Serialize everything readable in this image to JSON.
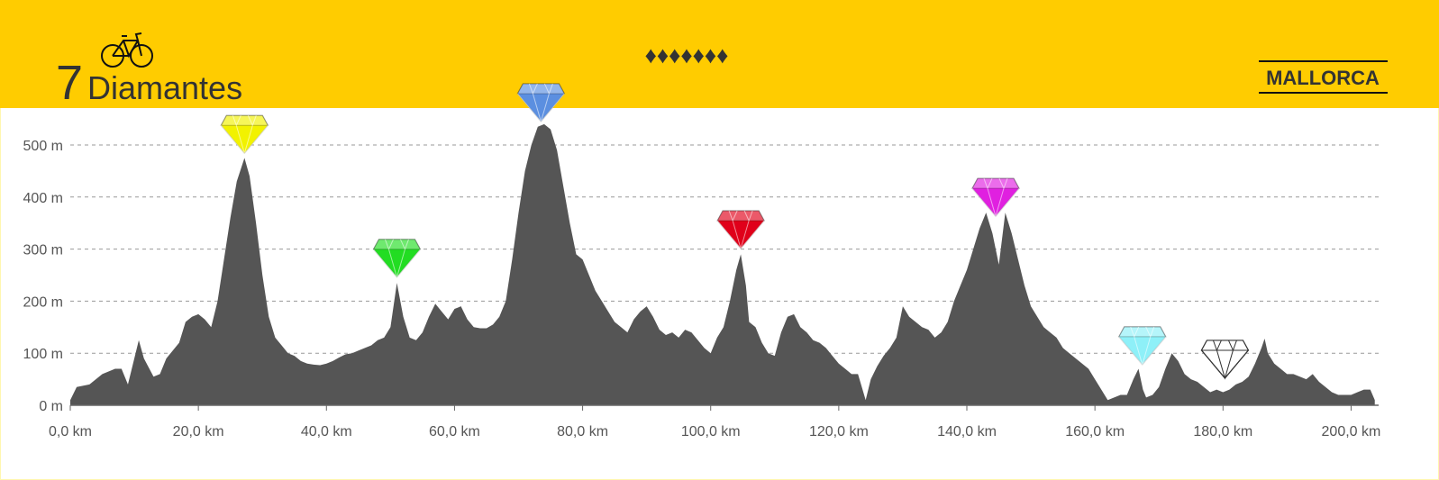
{
  "header": {
    "number": "7",
    "title": "Diamantes",
    "ornament": "♦♦♦♦♦♦♦",
    "region": "MALLORCA"
  },
  "chart_data": {
    "type": "area",
    "color": "#555555",
    "x": [
      0,
      1,
      3,
      5,
      7,
      8,
      9,
      10,
      10.7,
      11.5,
      13,
      14,
      15,
      17,
      18,
      19,
      20,
      21,
      22,
      23,
      24,
      25,
      26,
      27.2,
      28,
      29,
      30,
      31,
      32,
      33,
      34,
      35,
      36,
      37,
      38,
      39,
      40,
      41,
      42,
      43,
      44,
      45,
      46,
      47,
      48,
      49,
      50,
      51,
      52,
      53,
      54,
      55,
      56,
      57,
      58,
      59,
      60,
      61,
      62,
      63,
      64,
      65,
      66,
      67,
      68,
      69,
      70,
      71,
      72,
      73,
      74,
      75,
      76,
      77,
      78,
      79,
      80,
      81,
      82,
      83,
      84,
      85,
      86,
      87,
      88,
      89,
      90,
      91,
      92,
      93,
      94,
      95,
      96,
      97,
      98,
      99,
      100,
      101,
      102,
      103,
      104,
      104.7,
      105.5,
      106,
      107,
      108,
      109,
      110,
      111,
      112,
      113,
      114,
      115,
      116,
      117,
      118,
      119,
      120,
      121,
      122,
      123,
      124.2,
      125,
      126,
      127,
      128,
      129,
      130,
      131,
      132,
      133,
      134,
      135,
      136,
      137,
      138,
      139,
      140,
      141,
      142,
      143,
      144,
      145,
      146,
      147,
      148,
      149,
      150,
      151,
      152,
      153,
      154,
      155,
      156,
      157,
      158,
      159,
      160,
      161,
      162,
      163,
      164,
      165,
      166,
      166.8,
      167.5,
      168,
      169,
      170,
      171,
      172,
      173,
      174,
      175,
      176,
      177,
      178,
      179,
      180,
      181,
      182,
      183,
      184,
      185,
      186,
      186.5,
      187,
      188,
      189,
      190,
      191,
      192,
      193,
      194,
      195,
      196,
      197,
      198,
      199,
      200,
      201,
      202,
      203,
      203.7
    ],
    "values": [
      10,
      35,
      40,
      60,
      70,
      70,
      40,
      90,
      125,
      90,
      55,
      60,
      90,
      120,
      160,
      170,
      175,
      165,
      150,
      200,
      280,
      360,
      430,
      475,
      440,
      350,
      250,
      170,
      130,
      115,
      100,
      95,
      85,
      80,
      78,
      77,
      80,
      85,
      92,
      98,
      100,
      105,
      110,
      115,
      125,
      130,
      150,
      235,
      170,
      130,
      125,
      140,
      170,
      195,
      180,
      165,
      185,
      190,
      165,
      150,
      148,
      148,
      155,
      170,
      200,
      280,
      370,
      450,
      500,
      535,
      540,
      530,
      490,
      420,
      350,
      290,
      280,
      250,
      220,
      200,
      180,
      160,
      150,
      140,
      165,
      180,
      190,
      170,
      145,
      135,
      140,
      130,
      145,
      140,
      125,
      110,
      100,
      130,
      150,
      200,
      260,
      290,
      230,
      160,
      150,
      120,
      100,
      95,
      140,
      170,
      175,
      150,
      140,
      125,
      120,
      110,
      95,
      80,
      70,
      60,
      60,
      10,
      50,
      75,
      95,
      110,
      130,
      190,
      170,
      160,
      150,
      145,
      130,
      140,
      160,
      200,
      230,
      260,
      300,
      340,
      370,
      330,
      270,
      370,
      330,
      280,
      230,
      190,
      170,
      150,
      140,
      130,
      110,
      100,
      90,
      80,
      70,
      50,
      30,
      10,
      15,
      20,
      20,
      50,
      70,
      30,
      15,
      20,
      35,
      70,
      100,
      85,
      60,
      50,
      45,
      35,
      25,
      30,
      25,
      30,
      40,
      45,
      55,
      80,
      110,
      128,
      100,
      80,
      70,
      60,
      60,
      55,
      50,
      60,
      45,
      35,
      25,
      20,
      20,
      20,
      25,
      30,
      30,
      10
    ],
    "markers": [
      {
        "x": 27.2,
        "y": 484,
        "color": "#f2f200"
      },
      {
        "x": 51,
        "y": 246,
        "color": "#22dd22"
      },
      {
        "x": 73.5,
        "y": 545,
        "color": "#5b8fe0"
      },
      {
        "x": 104.7,
        "y": 301,
        "color": "#e0001a"
      },
      {
        "x": 144.5,
        "y": 363,
        "color": "#e020e0"
      },
      {
        "x": 167.4,
        "y": 78,
        "color": "#8ef0f8"
      },
      {
        "x": 180.3,
        "y": 52,
        "color": "#ffffff"
      }
    ],
    "xlim": [
      0,
      204.3
    ],
    "ylim": [
      0,
      570
    ],
    "xticks": [
      {
        "value": 0,
        "label": "0,0 km"
      },
      {
        "value": 20,
        "label": "20,0 km"
      },
      {
        "value": 40,
        "label": "40,0 km"
      },
      {
        "value": 60,
        "label": "60,0 km"
      },
      {
        "value": 80,
        "label": "80,0 km"
      },
      {
        "value": 100,
        "label": "100,0 km"
      },
      {
        "value": 120,
        "label": "120,0 km"
      },
      {
        "value": 140,
        "label": "140,0 km"
      },
      {
        "value": 160,
        "label": "160,0 km"
      },
      {
        "value": 180,
        "label": "180,0 km"
      },
      {
        "value": 200,
        "label": "200,0 km"
      }
    ],
    "yticks": [
      {
        "value": 0,
        "label": "0 m"
      },
      {
        "value": 100,
        "label": "100 m"
      },
      {
        "value": 200,
        "label": "200 m"
      },
      {
        "value": 300,
        "label": "300 m"
      },
      {
        "value": 400,
        "label": "400 m"
      },
      {
        "value": 500,
        "label": "500 m"
      }
    ],
    "grid": true
  }
}
